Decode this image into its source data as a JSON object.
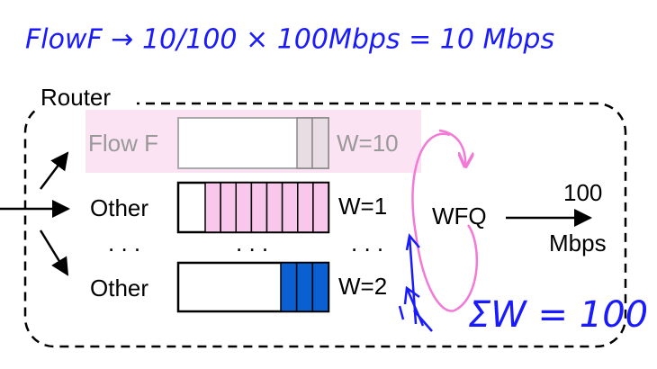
{
  "annotation_top": "FlowF → 10/100 × 100Mbps = 10 Mbps",
  "router": {
    "label": "Router"
  },
  "queues": [
    {
      "label": "Flow F",
      "weight": "W=10"
    },
    {
      "label": "Other",
      "weight": "W=1"
    },
    {
      "label": "Other",
      "weight": "W=2"
    }
  ],
  "ellipsis": {
    "label": ". . .",
    "queue": ". . .",
    "weight": ". . ."
  },
  "scheduler": "WFQ",
  "link": {
    "rate": "100",
    "unit": "Mbps"
  },
  "annotation_sum": "ΣW = 100"
}
